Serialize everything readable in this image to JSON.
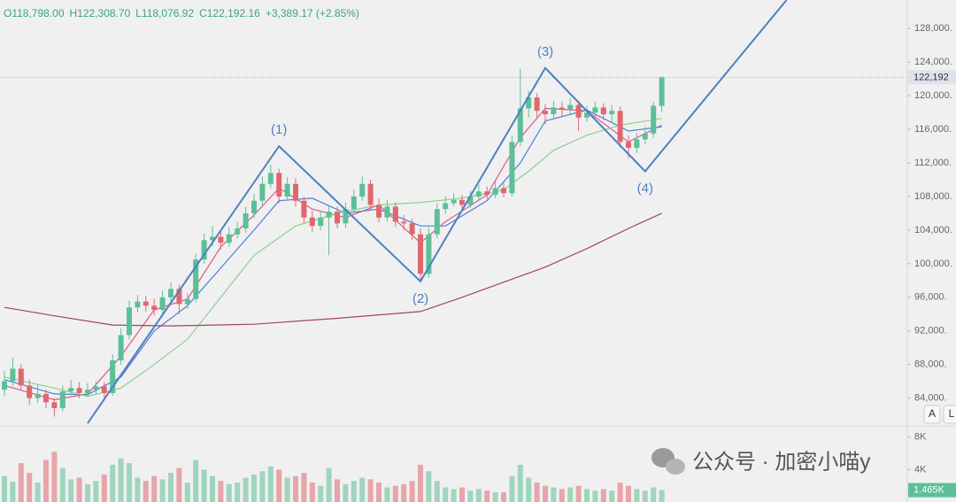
{
  "chart_data": {
    "type": "candlestick",
    "header": [
      "O118,798.00",
      "H122,308.70",
      "L118,076.92",
      "C122,192.16",
      "+3,389.17 (+2.85%)"
    ],
    "up_color": "#5cbf98",
    "down_color": "#e0676f",
    "ylim": [
      80800,
      131400
    ],
    "yticks": [
      {
        "value": 84000,
        "label": "84,000."
      },
      {
        "value": 88000,
        "label": "88,000."
      },
      {
        "value": 92000,
        "label": "92,000."
      },
      {
        "value": 96000,
        "label": "96,000."
      },
      {
        "value": 100000,
        "label": "100,000."
      },
      {
        "value": 104000,
        "label": "104,000."
      },
      {
        "value": 108000,
        "label": "108,000."
      },
      {
        "value": 112000,
        "label": "112,000."
      },
      {
        "value": 116000,
        "label": "116,000."
      },
      {
        "value": 120000,
        "label": "120,000."
      },
      {
        "value": 124000,
        "label": "124,000."
      },
      {
        "value": 128000,
        "label": "128,000."
      }
    ],
    "grid": false,
    "last_price": {
      "value": 122192.16,
      "label": "122,192"
    },
    "candles": {
      "open": [
        85000,
        86000,
        87500,
        85500,
        84000,
        84500,
        83500,
        82800,
        84800,
        85200,
        84600,
        85000,
        85400,
        84600,
        88500,
        91500,
        94800,
        95500,
        95000,
        94500,
        96000,
        97000,
        95200,
        95800,
        100500,
        102800,
        103200,
        102500,
        103500,
        104200,
        106000,
        107500,
        109500,
        110800,
        108000,
        109500,
        107500,
        105500,
        104500,
        105500,
        106200,
        104800,
        106500,
        108000,
        109500,
        107000,
        105500,
        106800,
        105000,
        104800,
        103500,
        98800,
        103500,
        106500,
        107200,
        107600,
        107000,
        108000,
        108600,
        108200,
        109000,
        108400,
        114500,
        118500,
        119800,
        118200,
        117800,
        118600,
        118400,
        118900,
        117400,
        118000,
        118600,
        117800,
        118200,
        114500,
        113800,
        114800,
        115500,
        118798
      ],
      "high": [
        87200,
        88800,
        88000,
        86200,
        85600,
        85000,
        84000,
        85500,
        86200,
        85900,
        85800,
        86000,
        85900,
        89200,
        92300,
        95600,
        96300,
        96200,
        95800,
        96800,
        97800,
        97500,
        96500,
        101200,
        103600,
        104500,
        104000,
        104400,
        105000,
        106800,
        108300,
        110400,
        111800,
        111300,
        110300,
        110200,
        108000,
        106300,
        106200,
        107000,
        106800,
        107300,
        108800,
        110400,
        110000,
        107800,
        107600,
        107300,
        105800,
        105400,
        104200,
        104300,
        107200,
        108000,
        108400,
        108200,
        108700,
        109400,
        109200,
        109800,
        109600,
        115300,
        123200,
        120600,
        120300,
        119000,
        119400,
        119300,
        119700,
        119400,
        118800,
        119300,
        119100,
        118900,
        118700,
        115300,
        115600,
        116300,
        119300,
        122308.7
      ],
      "low": [
        84200,
        85400,
        84900,
        83200,
        83400,
        82800,
        81800,
        82400,
        84300,
        84000,
        84200,
        84500,
        84000,
        84300,
        88000,
        91000,
        94200,
        94300,
        93800,
        94000,
        95400,
        94000,
        94600,
        95400,
        100000,
        102100,
        101700,
        102000,
        103000,
        103700,
        105400,
        107000,
        109000,
        107200,
        107500,
        106800,
        104800,
        103800,
        104000,
        101000,
        104200,
        104300,
        106000,
        107500,
        106400,
        104900,
        105000,
        104400,
        104000,
        102800,
        98000,
        98300,
        103000,
        105900,
        106800,
        106400,
        106600,
        107600,
        107700,
        107800,
        107900,
        108000,
        114000,
        117400,
        117400,
        116600,
        117300,
        117500,
        117800,
        115800,
        116900,
        117400,
        117100,
        116800,
        113800,
        112500,
        113200,
        114200,
        115000,
        118076.92
      ],
      "close": [
        86000,
        87500,
        85500,
        84000,
        84500,
        83500,
        82800,
        84800,
        85200,
        84600,
        85000,
        85400,
        84600,
        88500,
        91500,
        94800,
        95500,
        95000,
        94500,
        96000,
        97000,
        95200,
        95800,
        100500,
        102800,
        103200,
        102500,
        103500,
        104200,
        106000,
        107500,
        109500,
        110800,
        108000,
        109500,
        107500,
        105500,
        104500,
        105500,
        106200,
        104800,
        106500,
        108000,
        109500,
        107000,
        105500,
        106800,
        105000,
        104800,
        103500,
        98800,
        103500,
        106500,
        107200,
        107600,
        107000,
        108000,
        108600,
        108200,
        109000,
        108400,
        114500,
        118500,
        119800,
        118200,
        117800,
        118600,
        118400,
        118900,
        117400,
        118000,
        118600,
        117800,
        118200,
        114500,
        113800,
        114800,
        115500,
        118802.99,
        122192.16
      ]
    },
    "moving_averages": [
      {
        "color": "#e0588c",
        "x": [
          0,
          6,
          10,
          14,
          18,
          22,
          26,
          30,
          33,
          37,
          41,
          45,
          50,
          53,
          58,
          62,
          65,
          70,
          75,
          79
        ],
        "values": [
          85500,
          83800,
          84500,
          89000,
          94500,
          95800,
          102000,
          105800,
          109000,
          106500,
          105500,
          107000,
          102500,
          105000,
          108200,
          115000,
          118500,
          118200,
          114500,
          116500
        ]
      },
      {
        "color": "#4a7fd6",
        "x": [
          0,
          6,
          10,
          14,
          18,
          22,
          26,
          30,
          33,
          37,
          41,
          45,
          50,
          53,
          58,
          62,
          65,
          70,
          75,
          79
        ],
        "values": [
          86200,
          84500,
          84400,
          86500,
          92000,
          95000,
          99500,
          104000,
          107500,
          107800,
          106000,
          106500,
          104500,
          104500,
          107500,
          112000,
          117000,
          118300,
          115800,
          116300
        ]
      },
      {
        "color": "#8ed08e",
        "x": [
          0,
          6,
          10,
          14,
          18,
          22,
          26,
          30,
          35,
          40,
          45,
          50,
          55,
          60,
          63,
          66,
          70,
          74,
          79
        ],
        "values": [
          86500,
          85200,
          84200,
          85200,
          88000,
          91000,
          96000,
          101000,
          104500,
          106000,
          107000,
          107300,
          107800,
          108800,
          111000,
          113500,
          115300,
          116500,
          117300
        ]
      },
      {
        "color": "#a3406f",
        "x": [
          0,
          6,
          13,
          20,
          30,
          40,
          50,
          55,
          60,
          65,
          70,
          75,
          79
        ],
        "values": [
          94800,
          93800,
          92700,
          92600,
          92800,
          93500,
          94300,
          96000,
          97800,
          99600,
          101800,
          104200,
          106000
        ]
      }
    ],
    "wave": {
      "color": "#4f7fc0",
      "x": [
        10,
        33,
        50,
        65,
        77,
        94
      ],
      "values": [
        81000,
        114000,
        97900,
        123300,
        111000,
        131400
      ],
      "labels": [
        null,
        "(1)",
        "(2)",
        "(3)",
        "(4)",
        null
      ]
    },
    "volume": {
      "ylim": [
        0,
        9400
      ],
      "yticks": [
        {
          "value": 4000,
          "label": "4K"
        },
        {
          "value": 8000,
          "label": "8K"
        }
      ],
      "values": [
        3200,
        2500,
        4800,
        3600,
        2400,
        5200,
        6200,
        4200,
        2800,
        3000,
        2200,
        2600,
        3400,
        4600,
        5400,
        4800,
        3000,
        2600,
        3200,
        2800,
        3600,
        4200,
        2400,
        5200,
        4000,
        3200,
        2600,
        2200,
        2400,
        3000,
        3400,
        3800,
        4400,
        4000,
        3000,
        3200,
        3600,
        2400,
        2000,
        4200,
        2800,
        2200,
        2600,
        3000,
        2800,
        2400,
        1800,
        2000,
        2200,
        2600,
        4600,
        3800,
        2600,
        1800,
        1600,
        1800,
        1400,
        1600,
        1400,
        1200,
        1200,
        3200,
        4600,
        3000,
        2400,
        2000,
        1800,
        1600,
        1800,
        2000,
        1600,
        1400,
        1600,
        1400,
        2400,
        2000,
        1600,
        1400,
        1800,
        1465
      ],
      "last_label": "1.465K"
    },
    "buttons": [
      "A",
      "L"
    ],
    "watermark": "公众号 · 加密小喵y"
  }
}
